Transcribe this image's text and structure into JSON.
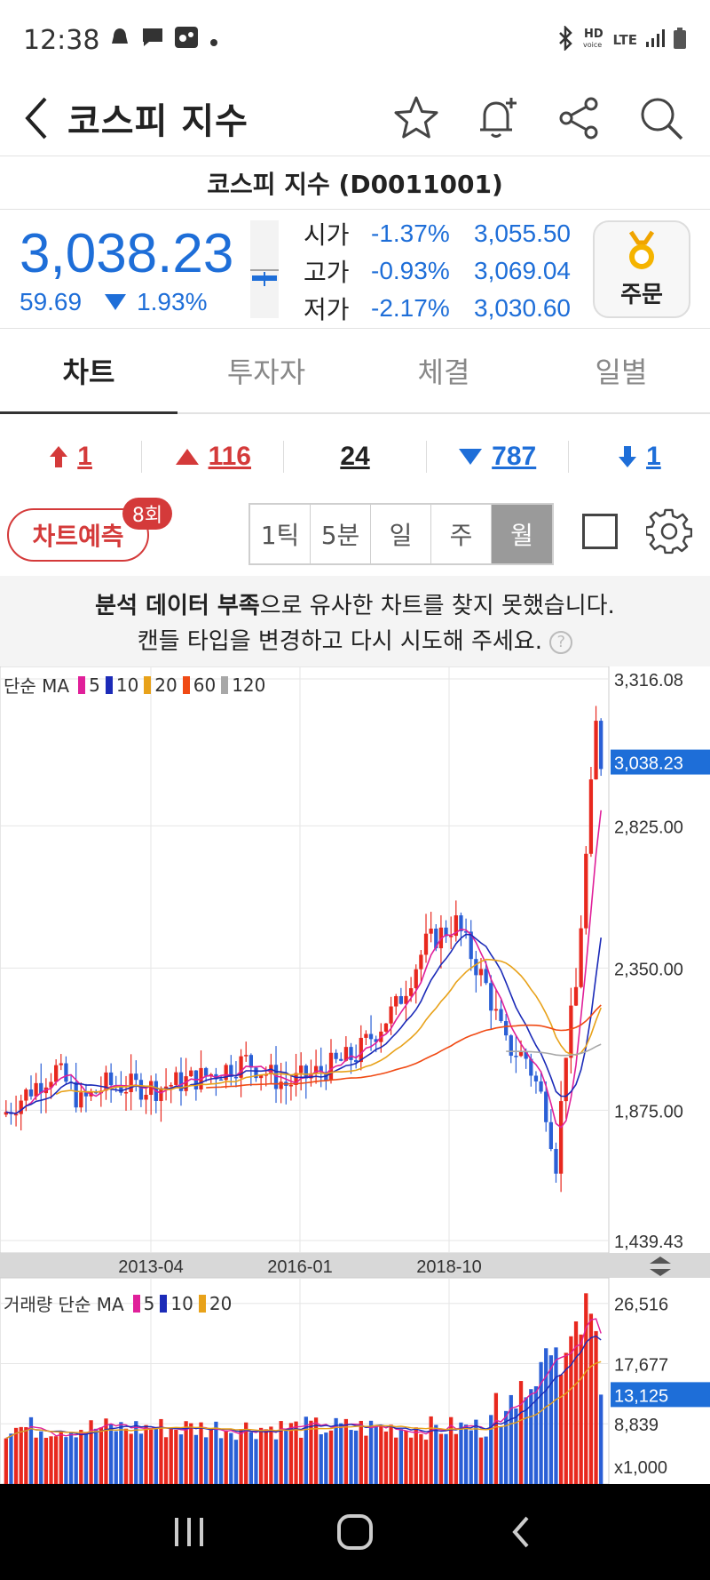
{
  "status_bar": {
    "time": "12:38",
    "network": "LTE"
  },
  "header": {
    "title": "코스피 지수"
  },
  "sub_title": "코스피 지수 (D0011001)",
  "quote": {
    "price": "3,038.23",
    "change": "59.69",
    "change_pct": "1.93%",
    "ohl": [
      {
        "label": "시가",
        "pct": "-1.37%",
        "value": "3,055.50"
      },
      {
        "label": "고가",
        "pct": "-0.93%",
        "value": "3,069.04"
      },
      {
        "label": "저가",
        "pct": "-2.17%",
        "value": "3,030.60"
      }
    ],
    "order_label": "주문"
  },
  "tabs": [
    {
      "label": "차트"
    },
    {
      "label": "투자자"
    },
    {
      "label": "체결"
    },
    {
      "label": "일별"
    }
  ],
  "counts": [
    {
      "value": "1",
      "color": "#d43a3a"
    },
    {
      "value": "116",
      "color": "#d43a3a"
    },
    {
      "value": "24",
      "color": "#222222"
    },
    {
      "value": "787",
      "color": "#1e6ed8"
    },
    {
      "value": "1",
      "color": "#1e6ed8"
    }
  ],
  "toolbar": {
    "predict_label": "차트예측",
    "predict_badge": "8회",
    "periods": [
      "1틱",
      "5분",
      "일",
      "주",
      "월"
    ],
    "active_period": "월"
  },
  "notice": {
    "line1_bold": "분석 데이터 부족",
    "line1_rest": "으로 유사한 차트를 찾지 못했습니다.",
    "line2": "캔들 타입을 변경하고 다시 시도해 주세요.",
    "help": "?"
  },
  "chart": {
    "price_legend": {
      "prefix": "단순 MA",
      "items": [
        {
          "label": "5",
          "color": "#e0209a"
        },
        {
          "label": "10",
          "color": "#1c2bb8"
        },
        {
          "label": "20",
          "color": "#e8a21a"
        },
        {
          "label": "60",
          "color": "#f04a14"
        },
        {
          "label": "120",
          "color": "#a8a8a8"
        }
      ]
    },
    "volume_legend": {
      "prefix": "거래량 단순 MA",
      "items": [
        {
          "label": "5",
          "color": "#e0209a"
        },
        {
          "label": "10",
          "color": "#1c2bb8"
        },
        {
          "label": "20",
          "color": "#e8a21a"
        }
      ]
    },
    "price_axis": [
      "3,316.08",
      "2,825.00",
      "2,350.00",
      "1,875.00",
      "1,439.43"
    ],
    "current_price_tag": "3,038.23",
    "x_labels": [
      "2013-04",
      "2016-01",
      "2018-10"
    ],
    "volume_axis": [
      "26,516",
      "17,677",
      "8,839",
      "x1,000"
    ],
    "current_volume_tag": "13,125",
    "up_color": "#e8281e",
    "down_color": "#2a5fd6"
  },
  "chart_data": {
    "type": "candlestick",
    "interval": "monthly",
    "x_ticks": [
      "2013-04",
      "2016-01",
      "2018-10"
    ],
    "ylim": [
      1439.43,
      3316.08
    ],
    "last_close": 3038.23,
    "volume_unit": "x1,000",
    "volume_ylim": [
      0,
      30000
    ],
    "last_volume": 13125
  }
}
